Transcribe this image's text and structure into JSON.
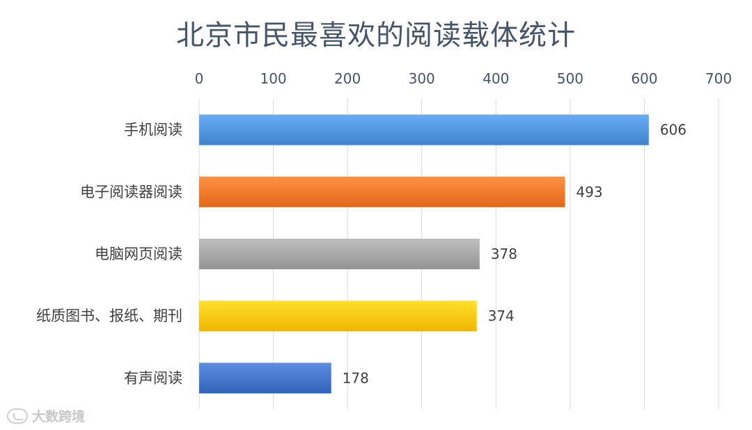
{
  "chart_data": {
    "type": "bar",
    "orientation": "horizontal",
    "title": "北京市民最喜欢的阅读载体统计",
    "categories": [
      "手机阅读",
      "电子阅读器阅读",
      "电脑网页阅读",
      "纸质图书、报纸、期刊",
      "有声阅读"
    ],
    "values": [
      606,
      493,
      378,
      374,
      178
    ],
    "bar_colors": [
      "#4a8fd8",
      "#ed7325",
      "#a0a0a0",
      "#fbc20c",
      "#3d6fc4"
    ],
    "xlim": [
      0,
      700
    ],
    "x_ticks": [
      "0",
      "100",
      "200",
      "300",
      "400",
      "500",
      "600",
      "700"
    ],
    "axis_position": "top",
    "grid": true,
    "legend": false,
    "data_labels": true
  },
  "watermark": {
    "text": "大数跨境"
  }
}
